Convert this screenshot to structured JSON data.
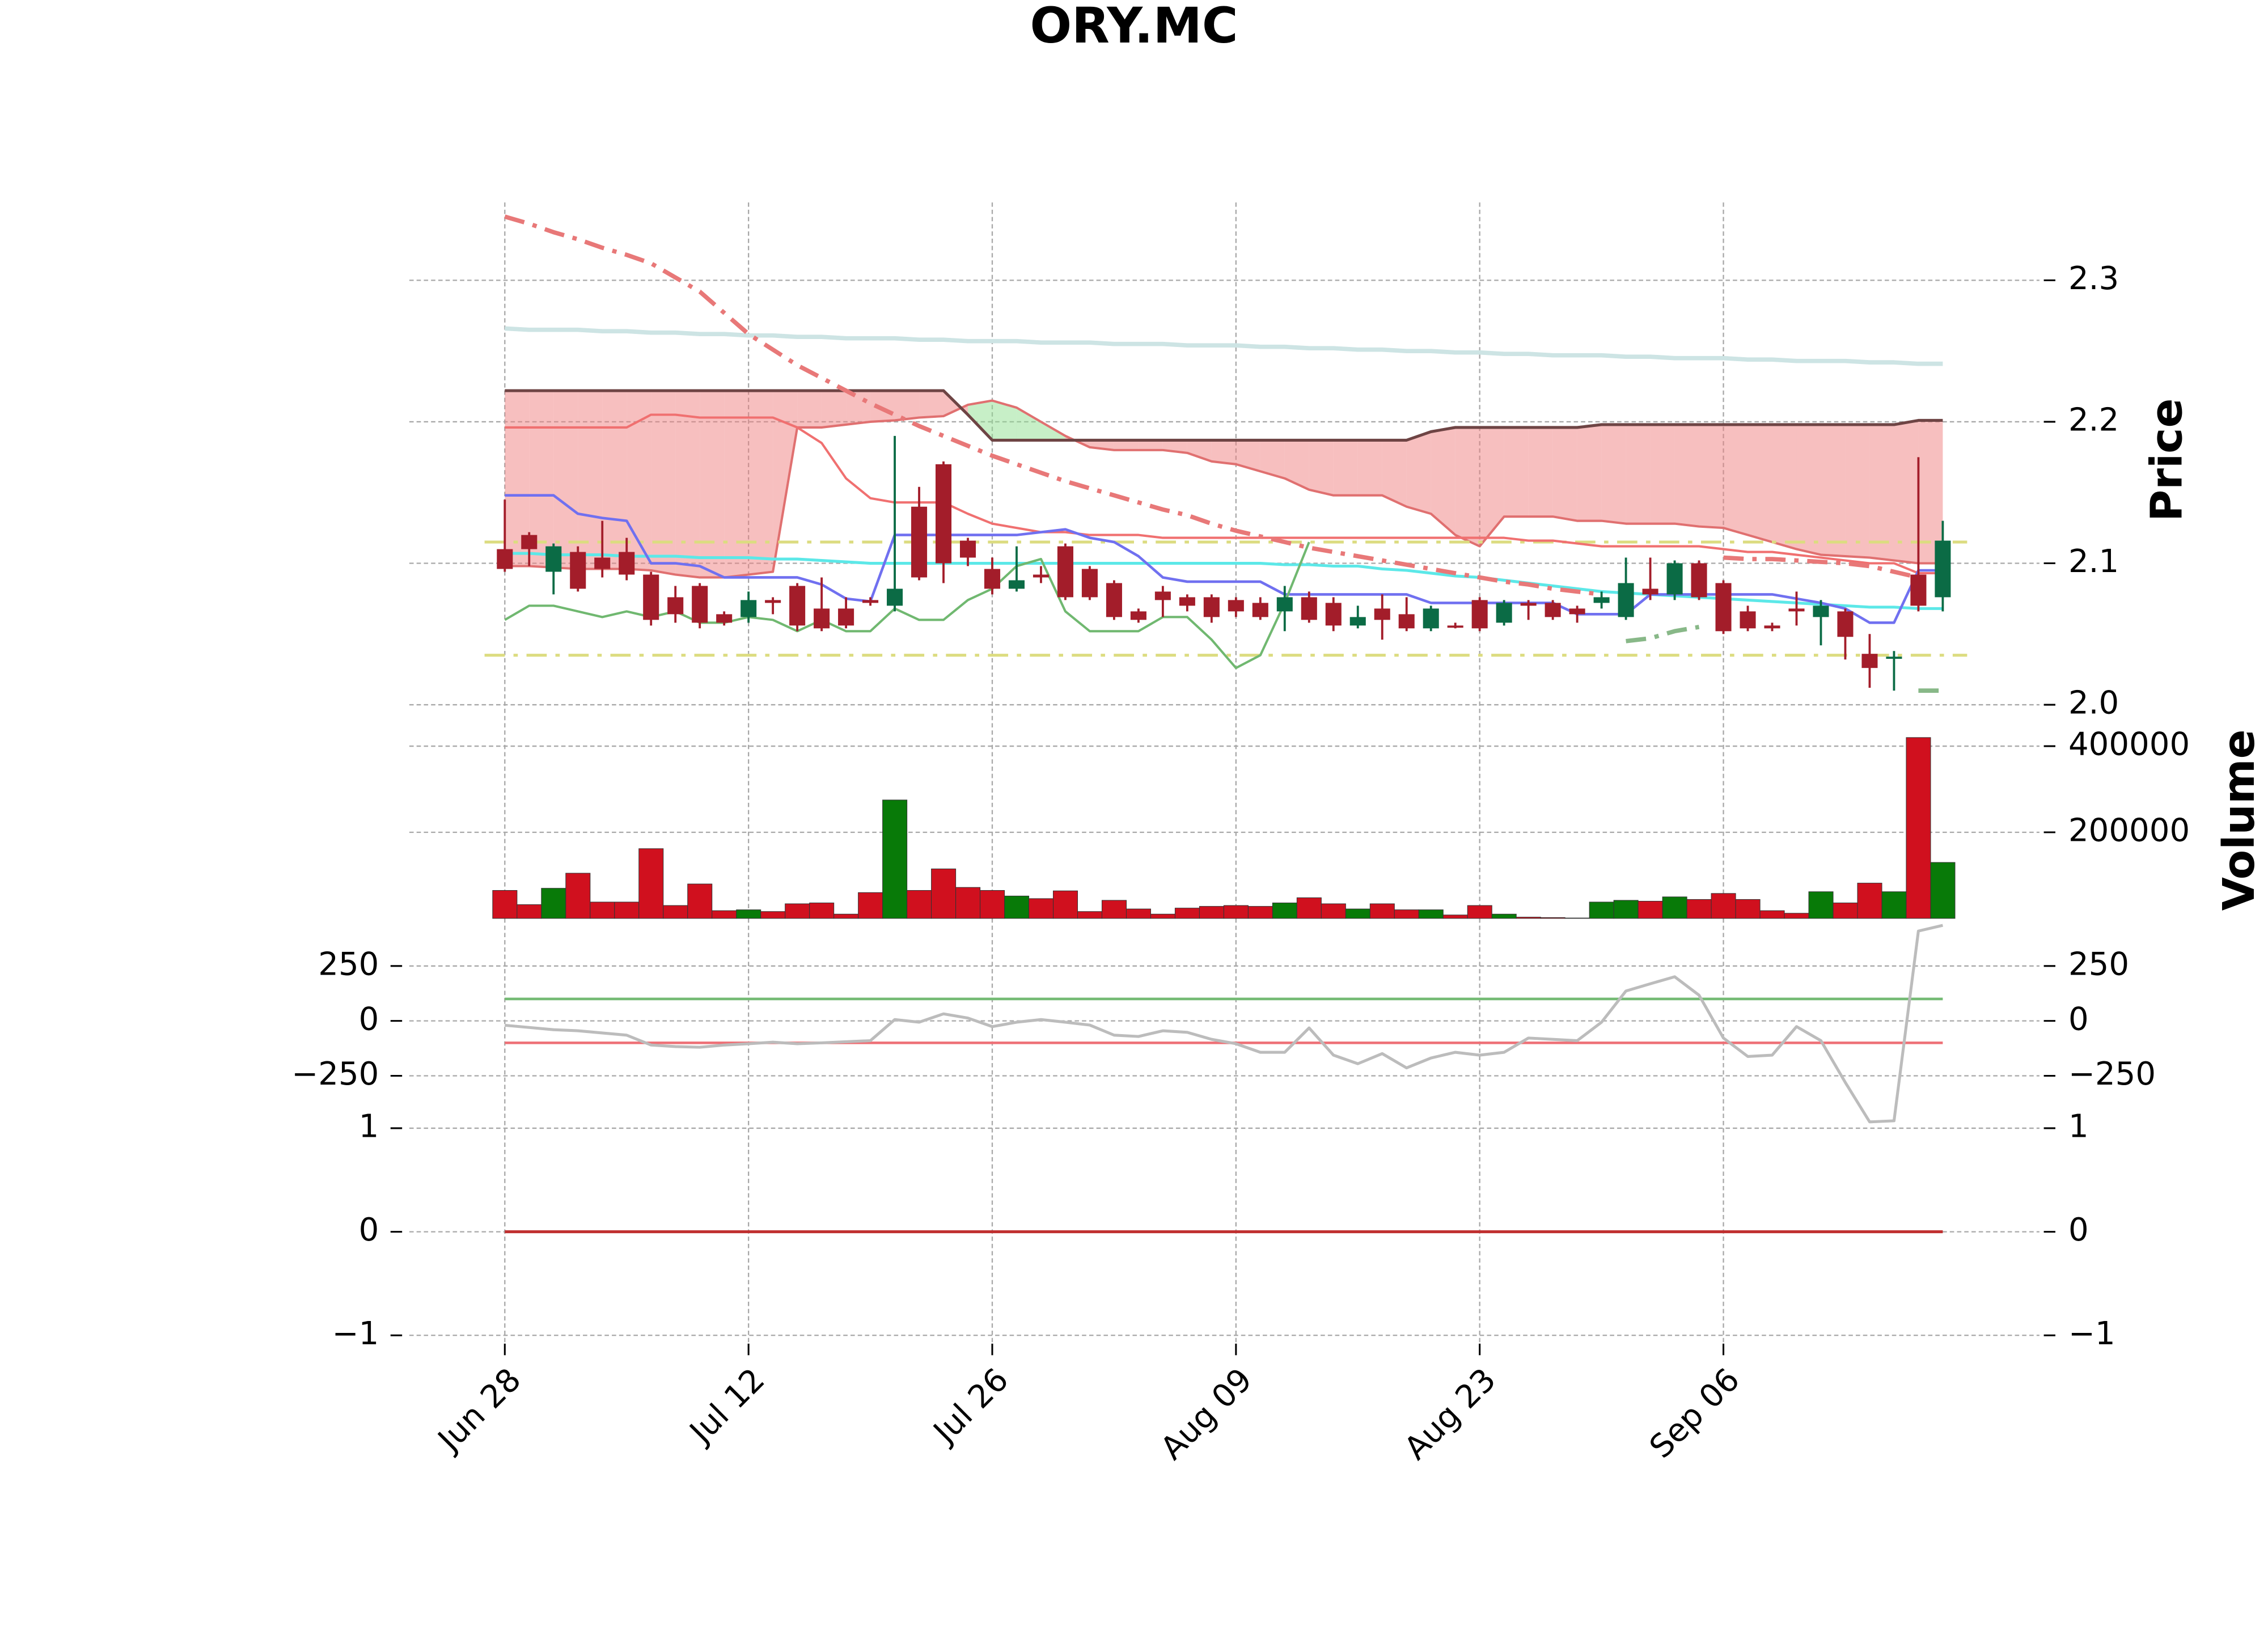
{
  "chart_data": [
    {
      "type": "candlestick",
      "title": "ORY.MC",
      "ylabel": "Price",
      "open": [
        2.11,
        2.12,
        2.094,
        2.108,
        2.104,
        2.108,
        2.092,
        2.076,
        2.084,
        2.064,
        2.062,
        2.074,
        2.084,
        2.068,
        2.068,
        2.074,
        2.07,
        2.14,
        2.17,
        2.116,
        2.096,
        2.082,
        2.092,
        2.112,
        2.096,
        2.086,
        2.066,
        2.08,
        2.076,
        2.076,
        2.074,
        2.072,
        2.066,
        2.076,
        2.072,
        2.056,
        2.068,
        2.064,
        2.054,
        2.056,
        2.074,
        2.058,
        2.072,
        2.072,
        2.068,
        2.072,
        2.062,
        2.082,
        2.078,
        2.1,
        2.086,
        2.066,
        2.056,
        2.068,
        2.062,
        2.066,
        2.036,
        2.034,
        2.092,
        2.076
      ],
      "high": [
        2.145,
        2.122,
        2.114,
        2.112,
        2.13,
        2.118,
        2.094,
        2.084,
        2.086,
        2.066,
        2.08,
        2.076,
        2.086,
        2.09,
        2.076,
        2.076,
        2.19,
        2.154,
        2.172,
        2.118,
        2.104,
        2.112,
        2.098,
        2.114,
        2.098,
        2.088,
        2.068,
        2.084,
        2.078,
        2.078,
        2.076,
        2.076,
        2.084,
        2.08,
        2.076,
        2.07,
        2.078,
        2.076,
        2.07,
        2.058,
        2.076,
        2.074,
        2.074,
        2.074,
        2.07,
        2.08,
        2.104,
        2.104,
        2.102,
        2.102,
        2.088,
        2.07,
        2.058,
        2.08,
        2.074,
        2.068,
        2.05,
        2.038,
        2.175,
        2.13
      ],
      "low": [
        2.094,
        2.098,
        2.078,
        2.08,
        2.09,
        2.088,
        2.056,
        2.058,
        2.054,
        2.056,
        2.058,
        2.064,
        2.052,
        2.052,
        2.054,
        2.07,
        2.066,
        2.088,
        2.086,
        2.098,
        2.078,
        2.08,
        2.086,
        2.074,
        2.074,
        2.06,
        2.058,
        2.062,
        2.066,
        2.058,
        2.062,
        2.06,
        2.052,
        2.058,
        2.052,
        2.054,
        2.046,
        2.052,
        2.052,
        2.054,
        2.052,
        2.056,
        2.06,
        2.06,
        2.058,
        2.068,
        2.06,
        2.074,
        2.074,
        2.074,
        2.05,
        2.052,
        2.052,
        2.056,
        2.042,
        2.032,
        2.012,
        2.01,
        2.066,
        2.066
      ],
      "close": [
        2.096,
        2.11,
        2.112,
        2.082,
        2.096,
        2.092,
        2.06,
        2.064,
        2.058,
        2.058,
        2.074,
        2.072,
        2.056,
        2.054,
        2.056,
        2.072,
        2.082,
        2.09,
        2.1,
        2.104,
        2.082,
        2.088,
        2.09,
        2.076,
        2.076,
        2.062,
        2.06,
        2.074,
        2.07,
        2.062,
        2.066,
        2.062,
        2.076,
        2.06,
        2.056,
        2.062,
        2.06,
        2.054,
        2.068,
        2.055,
        2.054,
        2.072,
        2.07,
        2.062,
        2.064,
        2.076,
        2.086,
        2.078,
        2.1,
        2.076,
        2.052,
        2.054,
        2.054,
        2.066,
        2.07,
        2.048,
        2.026,
        2.034,
        2.07,
        2.116
      ],
      "up_color": "#0b6b45",
      "down_color": "#a31d2a",
      "ylim": [
        1.987,
        2.355
      ],
      "yticks": [
        {
          "value": 2,
          "label": "2.0"
        },
        2.1,
        2.2,
        2.3
      ],
      "tick_sides": [
        "right"
      ],
      "grid": true,
      "cloud": {
        "a_color": "#e07070",
        "b_color": "#6e4444",
        "up_color": "#90e090",
        "down_color": "#f08080",
        "a": [
          2.098,
          2.098,
          2.097,
          2.096,
          2.096,
          2.096,
          2.095,
          2.092,
          2.09,
          2.09,
          2.092,
          2.094,
          2.196,
          2.196,
          2.198,
          2.2,
          2.201,
          2.203,
          2.204,
          2.212,
          2.215,
          2.21,
          2.2,
          2.19,
          2.182,
          2.18,
          2.18,
          2.18,
          2.178,
          2.172,
          2.17,
          2.165,
          2.16,
          2.152,
          2.148,
          2.148,
          2.148,
          2.14,
          2.135,
          2.12,
          2.112,
          2.133,
          2.133,
          2.133,
          2.13,
          2.13,
          2.128,
          2.128,
          2.128,
          2.126,
          2.125,
          2.12,
          2.115,
          2.11,
          2.106,
          2.105,
          2.104,
          2.102,
          2.1,
          2.1
        ],
        "b": [
          2.222,
          2.222,
          2.222,
          2.222,
          2.222,
          2.222,
          2.222,
          2.222,
          2.222,
          2.222,
          2.222,
          2.222,
          2.222,
          2.222,
          2.222,
          2.222,
          2.222,
          2.222,
          2.222,
          2.205,
          2.187,
          2.187,
          2.187,
          2.187,
          2.187,
          2.187,
          2.187,
          2.187,
          2.187,
          2.187,
          2.187,
          2.187,
          2.187,
          2.187,
          2.187,
          2.187,
          2.187,
          2.187,
          2.193,
          2.196,
          2.196,
          2.196,
          2.196,
          2.196,
          2.196,
          2.198,
          2.198,
          2.198,
          2.198,
          2.198,
          2.198,
          2.198,
          2.198,
          2.198,
          2.198,
          2.198,
          2.198,
          2.198,
          2.201,
          2.201
        ]
      },
      "hlines": [
        {
          "value": 2.115,
          "color": "#dcdc80"
        },
        {
          "value": 2.035,
          "color": "#dcdc80"
        }
      ],
      "overlays": [
        {
          "color": "#cde4e4",
          "width": 3,
          "dash": "",
          "values": [
            2.266,
            2.265,
            2.265,
            2.265,
            2.264,
            2.264,
            2.263,
            2.263,
            2.262,
            2.262,
            2.261,
            2.261,
            2.26,
            2.26,
            2.259,
            2.259,
            2.259,
            2.258,
            2.258,
            2.257,
            2.257,
            2.257,
            2.256,
            2.256,
            2.256,
            2.255,
            2.255,
            2.255,
            2.254,
            2.254,
            2.254,
            2.253,
            2.253,
            2.252,
            2.252,
            2.251,
            2.251,
            2.25,
            2.25,
            2.249,
            2.249,
            2.248,
            2.248,
            2.247,
            2.247,
            2.247,
            2.246,
            2.246,
            2.245,
            2.245,
            2.245,
            2.244,
            2.244,
            2.243,
            2.243,
            2.243,
            2.242,
            2.242,
            2.241,
            2.241
          ]
        },
        {
          "color": "#5ce8e8",
          "width": 2,
          "dash": "",
          "values": [
            2.107,
            2.107,
            2.106,
            2.106,
            2.106,
            2.105,
            2.105,
            2.105,
            2.104,
            2.104,
            2.104,
            2.103,
            2.103,
            2.102,
            2.101,
            2.1,
            2.1,
            2.1,
            2.1,
            2.1,
            2.1,
            2.1,
            2.1,
            2.1,
            2.1,
            2.1,
            2.1,
            2.1,
            2.1,
            2.1,
            2.1,
            2.1,
            2.099,
            2.099,
            2.098,
            2.098,
            2.096,
            2.095,
            2.093,
            2.091,
            2.09,
            2.088,
            2.086,
            2.084,
            2.082,
            2.08,
            2.079,
            2.078,
            2.077,
            2.076,
            2.075,
            2.074,
            2.073,
            2.072,
            2.071,
            2.07,
            2.069,
            2.069,
            2.068,
            2.068
          ]
        },
        {
          "color": "#f07070",
          "width": 1.6,
          "dash": "",
          "values": [
            2.196,
            2.196,
            2.196,
            2.196,
            2.196,
            2.196,
            2.205,
            2.205,
            2.203,
            2.203,
            2.203,
            2.203,
            2.196,
            2.185,
            2.16,
            2.146,
            2.143,
            2.143,
            2.143,
            2.135,
            2.128,
            2.125,
            2.122,
            2.122,
            2.12,
            2.12,
            2.12,
            2.118,
            2.118,
            2.118,
            2.118,
            2.118,
            2.118,
            2.118,
            2.118,
            2.118,
            2.118,
            2.118,
            2.118,
            2.118,
            2.118,
            2.118,
            2.116,
            2.116,
            2.114,
            2.112,
            2.112,
            2.112,
            2.112,
            2.112,
            2.11,
            2.108,
            2.108,
            2.106,
            2.104,
            2.102,
            2.1,
            2.1,
            2.093,
            2.093
          ]
        },
        {
          "color": "#7070f0",
          "width": 1.8,
          "dash": "",
          "values": [
            2.148,
            2.148,
            2.148,
            2.135,
            2.132,
            2.13,
            2.1,
            2.1,
            2.098,
            2.09,
            2.09,
            2.09,
            2.09,
            2.085,
            2.075,
            2.073,
            2.12,
            2.12,
            2.12,
            2.12,
            2.12,
            2.12,
            2.122,
            2.124,
            2.118,
            2.115,
            2.105,
            2.09,
            2.087,
            2.087,
            2.087,
            2.087,
            2.078,
            2.078,
            2.078,
            2.078,
            2.078,
            2.078,
            2.072,
            2.072,
            2.072,
            2.072,
            2.072,
            2.072,
            2.064,
            2.064,
            2.064,
            2.078,
            2.078,
            2.078,
            2.078,
            2.078,
            2.078,
            2.075,
            2.072,
            2.068,
            2.058,
            2.058,
            2.095,
            2.095
          ]
        },
        {
          "color": "#70b870",
          "width": 1.6,
          "dash": "",
          "values": [
            2.06,
            2.07,
            2.07,
            2.066,
            2.062,
            2.066,
            2.062,
            2.066,
            2.058,
            2.058,
            2.062,
            2.06,
            2.052,
            2.06,
            2.052,
            2.052,
            2.068,
            2.06,
            2.06,
            2.074,
            2.082,
            2.098,
            2.103,
            2.066,
            2.052,
            2.052,
            2.052,
            2.062,
            2.062,
            2.046,
            2.026,
            2.035,
            2.072,
            2.115,
            null,
            null,
            null,
            null,
            null,
            null,
            null,
            null,
            null,
            null,
            null,
            null,
            null,
            null,
            null,
            null,
            null,
            null,
            null,
            null,
            null,
            null,
            null,
            null,
            null,
            null
          ]
        },
        {
          "color": "#e87878",
          "width": 3,
          "dash": "14,6,3,6",
          "values": [
            2.345,
            2.34,
            2.334,
            2.329,
            2.323,
            2.318,
            2.312,
            2.302,
            2.292,
            2.277,
            2.262,
            2.251,
            2.24,
            2.231,
            2.222,
            2.213,
            2.205,
            2.197,
            2.19,
            2.183,
            2.176,
            2.17,
            2.164,
            2.158,
            2.153,
            2.148,
            2.143,
            2.138,
            2.134,
            2.128,
            2.123,
            2.119,
            2.115,
            2.111,
            2.108,
            2.105,
            2.102,
            2.099,
            2.096,
            2.093,
            2.09,
            2.087,
            2.085,
            2.082,
            2.08,
            2.078,
            null,
            null,
            null,
            null,
            2.104,
            2.103,
            2.103,
            2.102,
            2.101,
            2.1,
            2.098,
            2.094,
            2.09,
            null
          ]
        },
        {
          "color": "#88b888",
          "width": 3,
          "dash": "14,6,3,6",
          "values": [
            null,
            null,
            null,
            null,
            null,
            null,
            null,
            null,
            null,
            null,
            null,
            null,
            null,
            null,
            null,
            null,
            null,
            null,
            null,
            null,
            null,
            null,
            null,
            null,
            null,
            null,
            null,
            null,
            null,
            null,
            null,
            null,
            null,
            null,
            null,
            null,
            null,
            null,
            null,
            null,
            null,
            null,
            null,
            null,
            null,
            null,
            2.045,
            2.047,
            2.052,
            2.055,
            null,
            null,
            null,
            null,
            null,
            null,
            null,
            null,
            2.01,
            2.01
          ]
        }
      ]
    },
    {
      "type": "bar",
      "ylabel": "Volume",
      "values": [
        65000,
        32000,
        70000,
        105000,
        38000,
        38000,
        162000,
        30000,
        80000,
        18000,
        20000,
        16000,
        34000,
        36000,
        10000,
        60000,
        275000,
        65000,
        115000,
        72000,
        65000,
        52000,
        46000,
        64000,
        16000,
        42000,
        22000,
        10000,
        24000,
        28000,
        30000,
        28000,
        36000,
        48000,
        34000,
        22000,
        34000,
        20000,
        20000,
        8000,
        30000,
        10000,
        3000,
        2000,
        1000,
        38000,
        42000,
        40000,
        50000,
        44000,
        58000,
        44000,
        18000,
        12000,
        62000,
        36000,
        82000,
        62000,
        420000,
        130000
      ],
      "up_color": "#087a08",
      "down_color": "#d0101e",
      "ylim": [
        0,
        450000
      ],
      "yticks": [
        200000,
        400000
      ],
      "tick_sides": [
        "right"
      ],
      "grid": true
    },
    {
      "type": "line",
      "color": "#bcbcbc",
      "values": [
        -20,
        -30,
        -40,
        -45,
        -55,
        -65,
        -110,
        -117,
        -120,
        -110,
        -104,
        -97,
        -104,
        -100,
        -95,
        -90,
        6,
        -6,
        32,
        13,
        -26,
        -6,
        6,
        -6,
        -19,
        -65,
        -71,
        -45,
        -52,
        -84,
        -104,
        -143,
        -143,
        -32,
        -156,
        -195,
        -149,
        -214,
        -169,
        -143,
        -156,
        -143,
        -78,
        -84,
        -90,
        -6,
        136,
        169,
        201,
        117,
        -78,
        -162,
        -156,
        -26,
        -90,
        -280,
        -460,
        -455,
        409,
        435
      ],
      "hlines": [
        {
          "value": 100,
          "color": "#74bb74"
        },
        {
          "value": -100,
          "color": "#ee7076"
        }
      ],
      "ylim": [
        -350,
        460
      ],
      "yticks": [
        {
          "value": -250,
          "label": "−250"
        },
        0,
        250
      ],
      "tick_sides": [
        "left",
        "right"
      ],
      "grid": true
    },
    {
      "type": "line",
      "color": "#c03030",
      "values": [
        0,
        0,
        0,
        0,
        0,
        0,
        0,
        0,
        0,
        0,
        0,
        0,
        0,
        0,
        0,
        0,
        0,
        0,
        0,
        0,
        0,
        0,
        0,
        0,
        0,
        0,
        0,
        0,
        0,
        0,
        0,
        0,
        0,
        0,
        0,
        0,
        0,
        0,
        0,
        0,
        0,
        0,
        0,
        0,
        0,
        0,
        0,
        0,
        0,
        0,
        0,
        0,
        0,
        0,
        0,
        0,
        0,
        0,
        0,
        0
      ],
      "ylim": [
        -1.08,
        1.28
      ],
      "yticks": [
        {
          "value": -1,
          "label": "−1"
        },
        0,
        1
      ],
      "tick_sides": [
        "left",
        "right"
      ],
      "grid": true,
      "xticks": [
        {
          "value": 0,
          "label": "Jun 28"
        },
        {
          "value": 10,
          "label": "Jul 12"
        },
        {
          "value": 20,
          "label": "Jul 26"
        },
        {
          "value": 30,
          "label": "Aug 09"
        },
        {
          "value": 40,
          "label": "Aug 23"
        },
        {
          "value": 50,
          "label": "Sep 06"
        }
      ]
    }
  ]
}
